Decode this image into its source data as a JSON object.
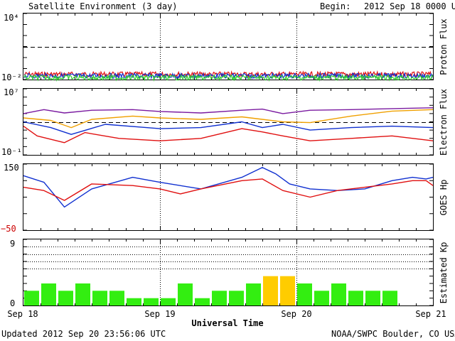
{
  "header": {
    "title": "Satellite Environment (3 day)",
    "begin_label": "Begin:",
    "begin_value": "2012 Sep 18 0000 UTC"
  },
  "footer": {
    "updated": "Updated 2012 Sep 20 23:56:06 UTC",
    "credit": "NOAA/SWPC Boulder, CO USA"
  },
  "x_axis": {
    "label": "Universal Time",
    "ticks": [
      "Sep 18",
      "Sep 19",
      "Sep 20",
      "Sep 21"
    ]
  },
  "colors": {
    "red": "#e01010",
    "blue": "#1030d0",
    "green": "#30d030",
    "purple": "#7a1aa0",
    "orange": "#f0a000",
    "kp_green": "#33ee11",
    "kp_yellow": "#ffcc00",
    "neg_label": "#cc0000"
  },
  "chart_data": [
    {
      "type": "line",
      "name": "proton_flux",
      "ylabel": "Proton Flux",
      "yscale": "log",
      "ylim": [
        0.01,
        10000
      ],
      "tick_labels": {
        "top": "10⁴",
        "bottom": "10⁻²"
      },
      "threshold": 10,
      "x_range_days": [
        0,
        3
      ],
      "series": [
        {
          "color": "red",
          "level": 0.03
        },
        {
          "color": "blue",
          "level": 0.022
        },
        {
          "color": "green",
          "level": 0.015
        }
      ]
    },
    {
      "type": "line",
      "name": "electron_flux",
      "ylabel": "Electron Flux",
      "yscale": "log",
      "ylim": [
        0.1,
        10000000
      ],
      "tick_labels": {
        "top": "10⁷",
        "bottom": "10⁻¹"
      },
      "threshold": 1000,
      "series": [
        {
          "color": "purple",
          "x": [
            0,
            0.15,
            0.3,
            0.5,
            0.8,
            1.0,
            1.3,
            1.6,
            1.75,
            1.9,
            2.1,
            2.4,
            2.7,
            3.0
          ],
          "y": [
            10000,
            30000,
            12000,
            25000,
            30000,
            18000,
            12000,
            25000,
            35000,
            10000,
            25000,
            30000,
            40000,
            50000
          ]
        },
        {
          "color": "orange",
          "x": [
            0,
            0.2,
            0.35,
            0.5,
            0.8,
            1.0,
            1.3,
            1.6,
            1.75,
            1.9,
            2.1,
            2.4,
            2.7,
            3.0
          ],
          "y": [
            3000,
            1500,
            200,
            2000,
            5000,
            3000,
            2000,
            4000,
            2000,
            1000,
            800,
            5000,
            20000,
            30000
          ]
        },
        {
          "color": "blue",
          "x": [
            0,
            0.2,
            0.35,
            0.6,
            0.9,
            1.0,
            1.3,
            1.6,
            1.75,
            1.9,
            2.1,
            2.4,
            2.7,
            3.0
          ],
          "y": [
            1000,
            200,
            30,
            500,
            200,
            150,
            200,
            1000,
            200,
            500,
            100,
            200,
            300,
            200
          ]
        },
        {
          "color": "red",
          "x": [
            0,
            0.1,
            0.3,
            0.45,
            0.7,
            1.0,
            1.3,
            1.6,
            1.75,
            1.9,
            2.1,
            2.4,
            2.7,
            3.0
          ],
          "y": [
            300,
            20,
            3,
            50,
            10,
            5,
            10,
            150,
            60,
            20,
            5,
            10,
            20,
            5
          ]
        }
      ]
    },
    {
      "type": "line",
      "name": "goes_hp",
      "ylabel": "GOES Hp",
      "ylim": [
        -50,
        150
      ],
      "tick_labels": {
        "top": "150",
        "bottom": "−50"
      },
      "series": [
        {
          "color": "blue",
          "x": [
            0,
            0.15,
            0.3,
            0.5,
            0.8,
            1.0,
            1.3,
            1.6,
            1.75,
            1.85,
            1.95,
            2.1,
            2.3,
            2.5,
            2.7,
            2.85,
            2.95,
            3.0
          ],
          "y": [
            115,
            95,
            20,
            75,
            110,
            95,
            75,
            110,
            140,
            120,
            90,
            75,
            70,
            75,
            100,
            110,
            105,
            110
          ]
        },
        {
          "color": "red",
          "x": [
            0,
            0.15,
            0.3,
            0.5,
            0.8,
            1.0,
            1.15,
            1.3,
            1.6,
            1.75,
            1.9,
            2.1,
            2.3,
            2.5,
            2.7,
            2.85,
            2.95,
            3.0
          ],
          "y": [
            80,
            70,
            40,
            90,
            85,
            75,
            60,
            75,
            100,
            105,
            70,
            50,
            70,
            80,
            90,
            100,
            100,
            85
          ]
        }
      ]
    },
    {
      "type": "bar",
      "name": "estimated_kp",
      "ylabel": "Estimated Kp",
      "ylim": [
        0,
        9
      ],
      "tick_labels": {
        "top": "9",
        "bottom": "0"
      },
      "dotted_levels": [
        5,
        6,
        7,
        8
      ],
      "interval_hours": 3,
      "values": [
        2,
        3,
        2,
        3,
        2,
        2,
        1,
        1,
        1,
        3,
        1,
        2,
        2,
        3,
        4,
        4,
        3,
        2,
        3,
        2,
        2,
        2
      ],
      "yellow_threshold": 4
    }
  ]
}
